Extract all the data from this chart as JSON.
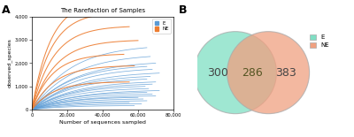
{
  "panel_a": {
    "title": "The Rarefaction of Samples",
    "xlabel": "Number of sequences sampled",
    "ylabel": "observed_species",
    "xlim": [
      0,
      80000
    ],
    "ylim": [
      0,
      4000
    ],
    "xticks": [
      0,
      20000,
      40000,
      60000,
      80000
    ],
    "xtick_labels": [
      "0",
      "20,000",
      "40,000",
      "60,000",
      "80,000"
    ],
    "yticks": [
      0,
      1000,
      2000,
      3000,
      4000
    ],
    "ytick_labels": [
      "0",
      "1,000",
      "2,000",
      "3,000",
      "4,000"
    ],
    "e_color": "#5B9BD5",
    "ne_color": "#ED7D31",
    "legend_labels": [
      "E",
      "NE"
    ],
    "n_e_curves": 22,
    "n_ne_curves": 7,
    "e_plateaus": [
      180,
      260,
      320,
      400,
      480,
      550,
      620,
      700,
      780,
      860,
      950,
      1050,
      1150,
      1250,
      1380,
      1500,
      1650,
      1820,
      1950,
      2100,
      2400,
      2800
    ],
    "e_xmax": [
      58000,
      62000,
      55000,
      65000,
      63000,
      60000,
      70000,
      68000,
      65000,
      72000,
      66000,
      64000,
      68000,
      70000,
      65000,
      67000,
      72000,
      68000,
      65000,
      70000,
      67000,
      65000
    ],
    "ne_plateaus": [
      1200,
      1900,
      2400,
      3000,
      3600,
      4200,
      4700
    ],
    "ne_xmax": [
      55000,
      58000,
      52000,
      60000,
      55000,
      50000,
      48000
    ]
  },
  "panel_b": {
    "e_count": 300,
    "shared_count": 286,
    "ne_count": 383,
    "e_color": "#7FDFC4",
    "ne_color": "#F0A080",
    "overlap_color": "#A8B870",
    "e_label": "E",
    "ne_label": "NE",
    "font_size": 9,
    "label_color": "#444444"
  },
  "panel_label_fontsize": 9,
  "bg_color": "#ffffff"
}
